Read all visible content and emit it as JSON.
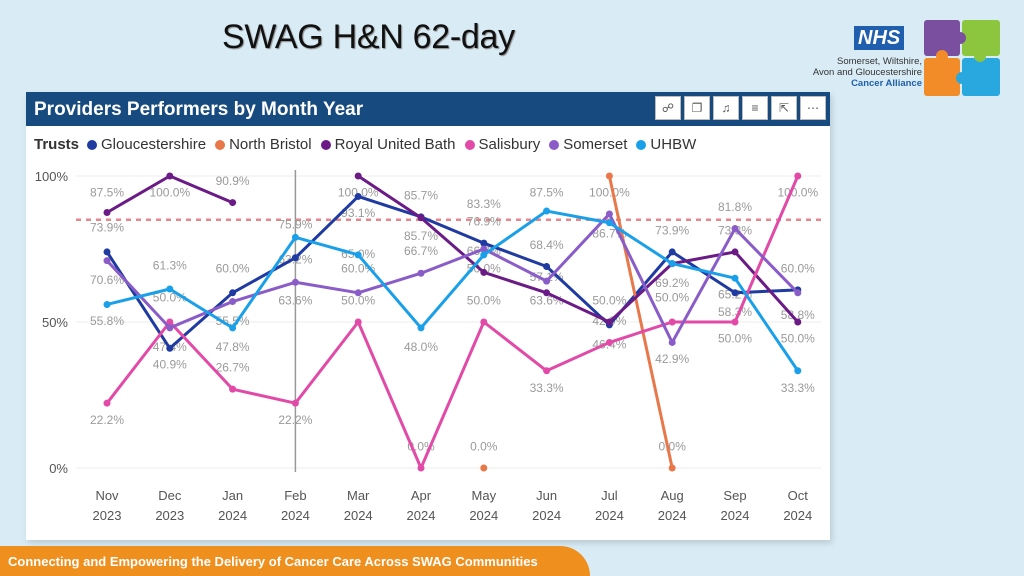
{
  "slide": {
    "title": "SWAG H&N 62-day",
    "footer": "Connecting and Empowering the Delivery of Cancer Care Across SWAG Communities"
  },
  "logo": {
    "nhs": "NHS",
    "line1": "Somerset, Wiltshire,",
    "line2": "Avon and Gloucestershire",
    "line3": "Cancer Alliance",
    "colors": [
      "#7a4fa0",
      "#8cc63f",
      "#f28c28",
      "#29a8e0"
    ]
  },
  "panel": {
    "title": "Providers Performers by Month Year",
    "toolbar_icons": [
      "pin-icon",
      "copy-icon",
      "bell-icon",
      "filter-icon",
      "focus-icon",
      "more-icon"
    ]
  },
  "chart_data": {
    "type": "line",
    "legend_title": "Trusts",
    "categories": [
      "Nov 2023",
      "Dec 2023",
      "Jan 2024",
      "Feb 2024",
      "Mar 2024",
      "Apr 2024",
      "May 2024",
      "Jun 2024",
      "Jul 2024",
      "Aug 2024",
      "Sep 2024",
      "Oct 2024"
    ],
    "x_ticks": [
      [
        "Nov",
        "2023"
      ],
      [
        "Dec",
        "2023"
      ],
      [
        "Jan",
        "2024"
      ],
      [
        "Feb",
        "2024"
      ],
      [
        "Mar",
        "2024"
      ],
      [
        "Apr",
        "2024"
      ],
      [
        "May",
        "2024"
      ],
      [
        "Jun",
        "2024"
      ],
      [
        "Jul",
        "2024"
      ],
      [
        "Aug",
        "2024"
      ],
      [
        "Sep",
        "2024"
      ],
      [
        "Oct",
        "2024"
      ]
    ],
    "y_ticks": [
      "100%",
      "50%",
      "0%"
    ],
    "y_tick_values": [
      100,
      50,
      0
    ],
    "ylim": [
      0,
      100
    ],
    "target_line": 85,
    "marker_category_index": 3,
    "series": [
      {
        "name": "Gloucestershire",
        "color": "#1f3aa0",
        "values": [
          74,
          41,
          60,
          72,
          93,
          86,
          77,
          69,
          49,
          74,
          60,
          61
        ]
      },
      {
        "name": "North Bristol",
        "color": "#e8784a",
        "values": [
          null,
          null,
          null,
          null,
          null,
          null,
          0,
          null,
          100,
          0,
          null,
          null
        ]
      },
      {
        "name": "Royal United Bath",
        "color": "#6b1b86",
        "values": [
          87.5,
          100,
          90.9,
          null,
          100,
          85.7,
          67,
          60,
          50,
          70,
          74,
          50
        ]
      },
      {
        "name": "Salisbury",
        "color": "#e24aa8",
        "values": [
          22.2,
          50,
          27,
          22.2,
          50,
          0,
          50,
          33.3,
          43,
          50,
          50,
          100
        ]
      },
      {
        "name": "Somerset",
        "color": "#8a5cc8",
        "values": [
          71,
          48,
          57,
          63.6,
          60,
          66.7,
          75,
          64,
          87,
          43,
          82,
          60
        ]
      },
      {
        "name": "UHBW",
        "color": "#1aa0e8",
        "values": [
          56,
          61.3,
          48,
          79,
          73,
          48,
          73,
          88,
          84,
          70,
          65,
          33.3
        ]
      }
    ],
    "data_labels": [
      {
        "text": "87.5%",
        "c": 0,
        "v": 93
      },
      {
        "text": "73.9%",
        "c": 0,
        "v": 81
      },
      {
        "text": "70.6%",
        "c": 0,
        "v": 63
      },
      {
        "text": "55.8%",
        "c": 0,
        "v": 49
      },
      {
        "text": "22.2%",
        "c": 0,
        "v": 15
      },
      {
        "text": "100.0%",
        "c": 1,
        "v": 93
      },
      {
        "text": "61.3%",
        "c": 1,
        "v": 68
      },
      {
        "text": "50.0%",
        "c": 1,
        "v": 57
      },
      {
        "text": "47.4%",
        "c": 1,
        "v": 40
      },
      {
        "text": "40.9%",
        "c": 1,
        "v": 34
      },
      {
        "text": "90.9%",
        "c": 2,
        "v": 97
      },
      {
        "text": "60.0%",
        "c": 2,
        "v": 67
      },
      {
        "text": "55.5%",
        "c": 2,
        "v": 49
      },
      {
        "text": "47.8%",
        "c": 2,
        "v": 40
      },
      {
        "text": "26.7%",
        "c": 2,
        "v": 33
      },
      {
        "text": "75.9%",
        "c": 3,
        "v": 82
      },
      {
        "text": "63.2%",
        "c": 3,
        "v": 70
      },
      {
        "text": "63.6%",
        "c": 3,
        "v": 56
      },
      {
        "text": "22.2%",
        "c": 3,
        "v": 15
      },
      {
        "text": "100.0%",
        "c": 4,
        "v": 93
      },
      {
        "text": "93.1%",
        "c": 4,
        "v": 86
      },
      {
        "text": "65.0%",
        "c": 4,
        "v": 72
      },
      {
        "text": "60.0%",
        "c": 4,
        "v": 67
      },
      {
        "text": "50.0%",
        "c": 4,
        "v": 56
      },
      {
        "text": "85.7%",
        "c": 5,
        "v": 92
      },
      {
        "text": "85.7%",
        "c": 5,
        "v": 78
      },
      {
        "text": "66.7%",
        "c": 5,
        "v": 73
      },
      {
        "text": "48.0%",
        "c": 5,
        "v": 40
      },
      {
        "text": "0.0%",
        "c": 5,
        "v": 6
      },
      {
        "text": "83.3%",
        "c": 6,
        "v": 89
      },
      {
        "text": "76.9%",
        "c": 6,
        "v": 83
      },
      {
        "text": "66.7%",
        "c": 6,
        "v": 73
      },
      {
        "text": "50.0%",
        "c": 6,
        "v": 67
      },
      {
        "text": "50.0%",
        "c": 6,
        "v": 56
      },
      {
        "text": "0.0%",
        "c": 6,
        "v": 6
      },
      {
        "text": "87.5%",
        "c": 7,
        "v": 93
      },
      {
        "text": "68.4%",
        "c": 7,
        "v": 75
      },
      {
        "text": "57.1%",
        "c": 7,
        "v": 64
      },
      {
        "text": "63.6%",
        "c": 7,
        "v": 56
      },
      {
        "text": "33.3%",
        "c": 7,
        "v": 26
      },
      {
        "text": "100.0%",
        "c": 8,
        "v": 93
      },
      {
        "text": "86.7%",
        "c": 8,
        "v": 79
      },
      {
        "text": "50.0%",
        "c": 8,
        "v": 56
      },
      {
        "text": "42.9%",
        "c": 8,
        "v": 49
      },
      {
        "text": "46.4%",
        "c": 8,
        "v": 41
      },
      {
        "text": "73.9%",
        "c": 9,
        "v": 80
      },
      {
        "text": "69.2%",
        "c": 9,
        "v": 62
      },
      {
        "text": "50.0%",
        "c": 9,
        "v": 57
      },
      {
        "text": "42.9%",
        "c": 9,
        "v": 36
      },
      {
        "text": "0.0%",
        "c": 9,
        "v": 6
      },
      {
        "text": "81.8%",
        "c": 10,
        "v": 88
      },
      {
        "text": "73.3%",
        "c": 10,
        "v": 80
      },
      {
        "text": "65.2%",
        "c": 10,
        "v": 58
      },
      {
        "text": "58.3%",
        "c": 10,
        "v": 52
      },
      {
        "text": "50.0%",
        "c": 10,
        "v": 43
      },
      {
        "text": "100.0%",
        "c": 11,
        "v": 93
      },
      {
        "text": "60.0%",
        "c": 11,
        "v": 67
      },
      {
        "text": "58.8%",
        "c": 11,
        "v": 51
      },
      {
        "text": "50.0%",
        "c": 11,
        "v": 43
      },
      {
        "text": "33.3%",
        "c": 11,
        "v": 26
      }
    ]
  }
}
